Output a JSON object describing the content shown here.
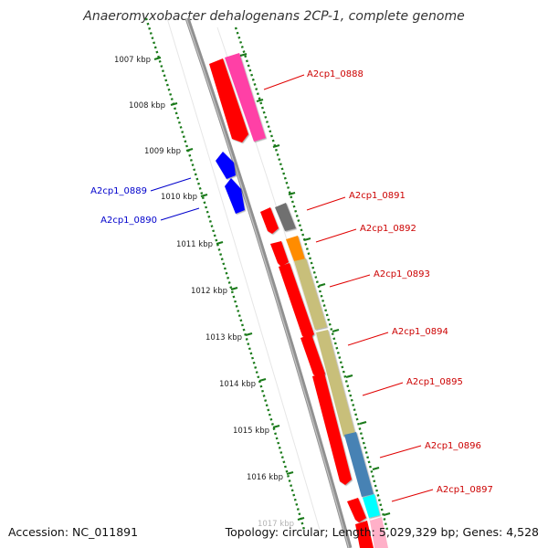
{
  "title": "Anaeromyxobacter dehalogenans 2CP-1, complete genome",
  "footer": {
    "accession": "Accession: NC_011891",
    "summary": "Topology: circular; Length: 5,029,329 bp; Genes: 4,528"
  },
  "colors": {
    "forward_default": "#ff0000",
    "reverse_default": "#0000ff",
    "tick": "#1a7a1a",
    "backbone": "#808080"
  },
  "axis": {
    "kbp_labels": [
      "1007 kbp",
      "1008 kbp",
      "1009 kbp",
      "1010 kbp",
      "1011 kbp",
      "1012 kbp",
      "1013 kbp",
      "1014 kbp",
      "1015 kbp",
      "1016 kbp",
      "1017 kbp"
    ]
  },
  "genes": [
    {
      "id": "A2cp1_0888",
      "strand": "forward",
      "color": "#ff0000",
      "labeled": false
    },
    {
      "id": "A2cp1_0888",
      "strand": "forward",
      "color": "#ff3fa6",
      "labeled": true
    },
    {
      "id": "A2cp1_0889",
      "strand": "reverse",
      "color": "#0000ff",
      "labeled": true
    },
    {
      "id": "A2cp1_0890",
      "strand": "reverse",
      "color": "#0000ff",
      "labeled": true
    },
    {
      "id": "A2cp1_0891",
      "strand": "forward",
      "color": "#707070",
      "labeled": true
    },
    {
      "id": "A2cp1_0892",
      "strand": "forward",
      "color": "#ff8c00",
      "labeled": true
    },
    {
      "id": "A2cp1_0893",
      "strand": "forward",
      "color": "#c8bf7a",
      "labeled": true
    },
    {
      "id": "A2cp1_0894",
      "strand": "forward",
      "color": "#c8bf7a",
      "labeled": true
    },
    {
      "id": "A2cp1_0895",
      "strand": "forward",
      "color": "#c8bf7a",
      "labeled": true
    },
    {
      "id": "A2cp1_0896",
      "strand": "forward",
      "color": "#4682b4",
      "labeled": true
    },
    {
      "id": "A2cp1_0897",
      "strand": "forward",
      "color": "#00ffff",
      "labeled": true
    }
  ]
}
